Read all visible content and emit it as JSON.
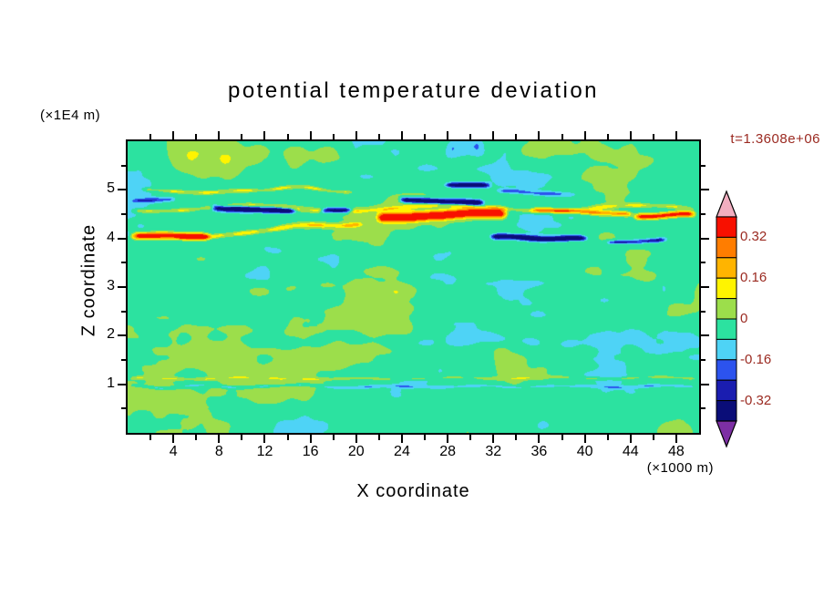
{
  "figure": {
    "background": "#FFFFFF",
    "frame_color": "#000000",
    "annotation_color": "#9B2A21"
  },
  "chart_data": {
    "type": "heatmap",
    "title": "potential temperature deviation",
    "time_label": "t=1.3608e+06",
    "xlabel": "X coordinate",
    "ylabel": "Z coordinate",
    "x_unit_factor": "(×1000 m)",
    "y_unit_factor": "(×1E4 m)",
    "x_range": [
      0,
      50
    ],
    "z_range": [
      0,
      6
    ],
    "x_ticks_major": [
      4,
      8,
      12,
      16,
      20,
      24,
      28,
      32,
      36,
      40,
      44,
      48
    ],
    "x_tick_minor_step": 2,
    "z_ticks_major": [
      1,
      2,
      3,
      4,
      5
    ],
    "z_tick_minor_step": 0.5,
    "grid": false,
    "legend_position": "right-colorbar",
    "colorbar": {
      "orientation": "vertical",
      "value_top": 0.4,
      "value_bottom": -0.4,
      "tick_labels": [
        "0.32",
        "0.16",
        "0",
        "-0.16",
        "-0.32"
      ],
      "tick_values": [
        0.32,
        0.16,
        0,
        -0.16,
        -0.32
      ],
      "label_color": "#9B2A21",
      "over_color": "#F2AEC0",
      "under_color": "#7D2FA4",
      "segments": [
        {
          "hi": 0.4,
          "lo": 0.32,
          "color": "#F81000"
        },
        {
          "hi": 0.32,
          "lo": 0.24,
          "color": "#FF7D00"
        },
        {
          "hi": 0.24,
          "lo": 0.16,
          "color": "#FFB400"
        },
        {
          "hi": 0.16,
          "lo": 0.08,
          "color": "#FFF400"
        },
        {
          "hi": 0.08,
          "lo": 0.0,
          "color": "#9CDE4B"
        },
        {
          "hi": 0.0,
          "lo": -0.08,
          "color": "#2CE2A0"
        },
        {
          "hi": -0.08,
          "lo": -0.16,
          "color": "#4ED3F6"
        },
        {
          "hi": -0.16,
          "lo": -0.24,
          "color": "#2C53EE"
        },
        {
          "hi": -0.24,
          "lo": -0.32,
          "color": "#1A1DB0"
        },
        {
          "hi": -0.32,
          "lo": -0.4,
          "color": "#0A0D78"
        }
      ]
    },
    "field": {
      "description": "Quantized filled-contour field: near-zero turbulent background (spring-green, base slightly negative) with patchy weak positive (yellow-green) and weak negative (cyan) blobs; a strongly sheared layer between z=3.9 and z=5.2 (x1E4 m) holds wavy intense positive (red/orange/yellow) and negative (navy/blue) streaks; thin intermittent streaks near z=1.",
      "base": -0.028,
      "seed": 7,
      "noise_octaves": [
        {
          "sx": 7.0,
          "sz": 0.9,
          "amp": 0.13
        },
        {
          "sx": 3.0,
          "sz": 0.4,
          "amp": 0.06
        },
        {
          "sx": 1.3,
          "sz": 0.17,
          "amp": 0.03
        }
      ],
      "bands_format": "[x0, x1, z_start, z_end, amplitude, half_thickness, wave_length, wave_amp, intermittency]",
      "bands": [
        [
          0,
          7.5,
          4.02,
          4.02,
          0.52,
          0.07,
          30,
          0.02,
          0.1
        ],
        [
          4,
          21,
          4.05,
          4.3,
          0.2,
          0.05,
          16,
          0.05,
          0.35
        ],
        [
          21.5,
          33.5,
          4.42,
          4.5,
          0.55,
          0.09,
          40,
          0.02,
          0.05
        ],
        [
          23.5,
          31.5,
          4.8,
          4.72,
          -0.5,
          0.055,
          30,
          0.02,
          0.1
        ],
        [
          7,
          15,
          4.62,
          4.6,
          -0.5,
          0.055,
          30,
          0.02,
          0.1
        ],
        [
          16.5,
          20,
          4.58,
          4.55,
          -0.45,
          0.05,
          30,
          0.02,
          0.1
        ],
        [
          0,
          50,
          4.62,
          4.62,
          0.16,
          0.045,
          17,
          0.07,
          0.45
        ],
        [
          35,
          44.5,
          4.57,
          4.5,
          0.3,
          0.05,
          25,
          0.03,
          0.2
        ],
        [
          44,
          50,
          4.48,
          4.52,
          0.48,
          0.06,
          30,
          0.02,
          0.1
        ],
        [
          31.5,
          40.5,
          4.05,
          4.02,
          -0.5,
          0.05,
          30,
          0.02,
          0.12
        ],
        [
          41.5,
          47.5,
          3.95,
          3.98,
          -0.28,
          0.04,
          20,
          0.03,
          0.3
        ],
        [
          27.5,
          32,
          5.1,
          5.08,
          -0.45,
          0.045,
          30,
          0.02,
          0.1
        ],
        [
          1,
          20,
          4.97,
          5.0,
          0.15,
          0.035,
          14,
          0.05,
          0.5
        ],
        [
          32,
          39.5,
          4.93,
          4.9,
          -0.17,
          0.04,
          20,
          0.03,
          0.4
        ],
        [
          0,
          4.5,
          4.8,
          4.82,
          -0.2,
          0.045,
          20,
          0.02,
          0.3
        ],
        [
          0,
          50,
          1.12,
          1.12,
          0.1,
          0.028,
          9,
          0.02,
          0.55
        ],
        [
          0,
          50,
          0.95,
          0.95,
          -0.11,
          0.028,
          8,
          0.02,
          0.55
        ],
        [
          4,
          46,
          1.9,
          1.9,
          -0.07,
          0.13,
          12,
          0.06,
          0.5
        ],
        [
          46,
          50,
          2.9,
          2.9,
          -0.1,
          0.22,
          10,
          0.03,
          0.3
        ],
        [
          3,
          20,
          5.7,
          5.75,
          0.08,
          0.3,
          15,
          0.05,
          0.4
        ],
        [
          33,
          45,
          5.8,
          5.8,
          0.07,
          0.25,
          14,
          0.05,
          0.4
        ],
        [
          27.5,
          31.5,
          5.85,
          5.9,
          -0.14,
          0.18,
          20,
          0.02,
          0.2
        ],
        [
          9,
          28,
          2.98,
          2.98,
          0.06,
          0.12,
          13,
          0.05,
          0.5
        ],
        [
          20,
          42,
          3.35,
          3.3,
          0.05,
          0.12,
          14,
          0.05,
          0.5
        ]
      ]
    }
  }
}
